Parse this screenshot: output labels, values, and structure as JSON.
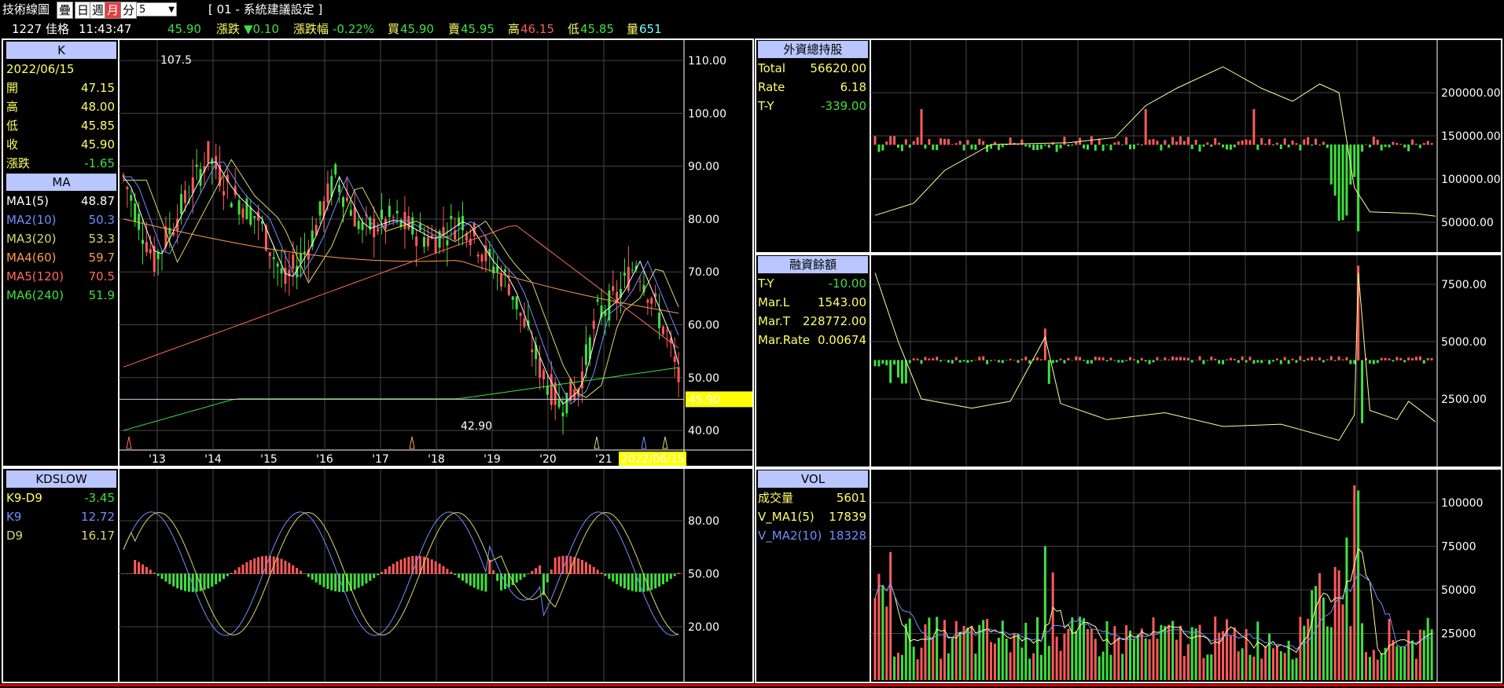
{
  "toolbar": {
    "title": "技術線圖",
    "btn_overlay": "疊",
    "btn_day": "日",
    "btn_week": "週",
    "btn_month": "月",
    "btn_min": "分",
    "select_value": "5",
    "system_label": "[ 01 - 系統建議設定 ]"
  },
  "quote": {
    "code": "1227",
    "name": "佳格",
    "time": "11:43:47",
    "price": "45.90",
    "chg_label": "漲跌",
    "chg_value": "▼0.10",
    "pct_label": "漲跌幅",
    "pct_value": "-0.22%",
    "buy_label": "買",
    "buy_value": "45.90",
    "sell_label": "賣",
    "sell_value": "45.95",
    "high_label": "高",
    "high_value": "46.15",
    "low_label": "低",
    "low_value": "45.85",
    "vol_label": "量",
    "vol_value": "651"
  },
  "colors": {
    "up": "#ff5a5a",
    "down": "#3fe03f",
    "ma1": "#ffffff",
    "ma2": "#6f8fff",
    "ma3": "#d8d870",
    "ma4": "#ff9a4a",
    "ma5": "#ff6a5a",
    "ma6": "#3fe03f",
    "header": "#b9c6ff",
    "label_yellow": "#ffff66"
  },
  "k_panel": {
    "header": "K",
    "date": "2022/06/15",
    "rows": [
      {
        "label": "開",
        "value": "47.15"
      },
      {
        "label": "高",
        "value": "48.00"
      },
      {
        "label": "低",
        "value": "45.85"
      },
      {
        "label": "收",
        "value": "45.90"
      },
      {
        "label": "漲跌",
        "value": "-1.65"
      }
    ],
    "ma_header": "MA",
    "ma_rows": [
      {
        "label": "MA1(5)",
        "value": "48.87"
      },
      {
        "label": "MA2(10)",
        "value": "50.3"
      },
      {
        "label": "MA3(20)",
        "value": "53.3"
      },
      {
        "label": "MA4(60)",
        "value": "59.7"
      },
      {
        "label": "MA5(120)",
        "value": "70.5"
      },
      {
        "label": "MA6(240)",
        "value": "51.9"
      }
    ],
    "high_label": "107.5",
    "low_label": "42.90",
    "current_price_tag": "45.90",
    "y_ticks": [
      "110.00",
      "100.00",
      "90.00",
      "80.00",
      "70.00",
      "60.00",
      "50.00",
      "40.00"
    ],
    "x_ticks": [
      "'13",
      "'14",
      "'15",
      "'16",
      "'17",
      "'18",
      "'19",
      "'20",
      "'21"
    ],
    "x_date_tag": "2022/06/15"
  },
  "kd_panel": {
    "header": "KDSLOW",
    "rows": [
      {
        "label": "K9-D9",
        "value": "-3.45"
      },
      {
        "label": "K9",
        "value": "12.72"
      },
      {
        "label": "D9",
        "value": "16.17"
      }
    ],
    "y_ticks": [
      "80.00",
      "50.00",
      "20.00"
    ]
  },
  "foreign_panel": {
    "header": "外資總持股",
    "rows": [
      {
        "label": "Total",
        "value": "56620.00"
      },
      {
        "label": "Rate",
        "value": "6.18"
      },
      {
        "label": "T-Y",
        "value": "-339.00"
      }
    ],
    "y_ticks": [
      "200000.00",
      "150000.00",
      "100000.00",
      "50000.00"
    ]
  },
  "margin_panel": {
    "header": "融資餘額",
    "rows": [
      {
        "label": "T-Y",
        "value": "-10.00"
      },
      {
        "label": "Mar.L",
        "value": "1543.00"
      },
      {
        "label": "Mar.T",
        "value": "228772.00"
      },
      {
        "label": "Mar.Rate",
        "value": "0.00674"
      }
    ],
    "y_ticks": [
      "7500.00",
      "5000.00",
      "2500.00"
    ]
  },
  "vol_panel": {
    "header": "VOL",
    "rows": [
      {
        "label": "成交量",
        "value": "5601"
      },
      {
        "label": "V_MA1(5)",
        "value": "17839"
      },
      {
        "label": "V_MA2(10)",
        "value": "18328"
      }
    ],
    "y_ticks": [
      "100000",
      "75000",
      "50000",
      "25000"
    ]
  }
}
